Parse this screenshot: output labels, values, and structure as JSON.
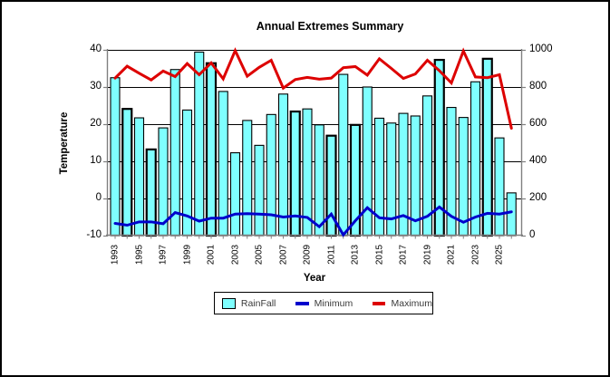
{
  "chart_data": {
    "type": "bar+line combo",
    "title": "Annual Extremes Summary",
    "xlabel": "Year",
    "ylabel_left": "Temperature",
    "grid": true,
    "legend": {
      "position": "bottom",
      "entries": [
        "RainFall",
        "Minimum",
        "Maximum"
      ]
    },
    "x_years": [
      1993,
      1994,
      1995,
      1996,
      1997,
      1998,
      1999,
      2000,
      2001,
      2002,
      2003,
      2004,
      2005,
      2006,
      2007,
      2008,
      2009,
      2010,
      2011,
      2012,
      2013,
      2014,
      2015,
      2016,
      2017,
      2018,
      2019,
      2020,
      2021,
      2022,
      2023,
      2024,
      2025,
      2026
    ],
    "x_tick_labels": [
      "1993",
      "1995",
      "1997",
      "1999",
      "2001",
      "2003",
      "2005",
      "2007",
      "2009",
      "2011",
      "2013",
      "2015",
      "2017",
      "2019",
      "2021",
      "2023",
      "2025"
    ],
    "left_axis": {
      "min": -10,
      "max": 40,
      "ticks": [
        40,
        30,
        20,
        10,
        0,
        -10
      ]
    },
    "right_axis": {
      "min": 0,
      "max": 1000,
      "ticks": [
        1000,
        800,
        600,
        400,
        200,
        0
      ]
    },
    "series": [
      {
        "name": "RainFall",
        "type": "bar",
        "axis": "right",
        "color": "#7FFFFF",
        "bold_border_years": [
          1994,
          1996,
          2001,
          2008,
          2011,
          2013,
          2020,
          2024
        ],
        "values": [
          850,
          682,
          634,
          464,
          580,
          894,
          676,
          988,
          928,
          776,
          446,
          620,
          486,
          652,
          762,
          668,
          682,
          596,
          538,
          868,
          596,
          800,
          632,
          606,
          658,
          644,
          752,
          946,
          690,
          636,
          828,
          952,
          526,
          230
        ]
      },
      {
        "name": "Minimum",
        "type": "line",
        "axis": "left",
        "color": "#0000CC",
        "values": [
          -6.7,
          -7.2,
          -6.3,
          -6.3,
          -6.8,
          -3.8,
          -4.7,
          -6.1,
          -5.3,
          -5.3,
          -4.2,
          -4.1,
          -4.2,
          -4.4,
          -5.0,
          -4.7,
          -5.1,
          -7.6,
          -4.2,
          -9.8,
          -6.0,
          -2.5,
          -5.2,
          -5.5,
          -4.6,
          -6.0,
          -4.8,
          -2.3,
          -4.8,
          -6.4,
          -5.0,
          -4.0,
          -4.2,
          -3.6
        ]
      },
      {
        "name": "Maximum",
        "type": "line",
        "axis": "left",
        "color": "#DD0000",
        "values": [
          32.4,
          35.6,
          33.7,
          31.9,
          34.3,
          32.8,
          36.3,
          33.3,
          36.5,
          32.2,
          39.8,
          32.9,
          35.3,
          37.2,
          29.7,
          32.0,
          32.6,
          32.1,
          32.4,
          35.2,
          35.5,
          33.2,
          37.6,
          35.0,
          32.3,
          33.5,
          37.2,
          34.4,
          31.1,
          39.7,
          32.7,
          32.5,
          33.3,
          18.9
        ]
      }
    ],
    "style": {
      "gridline_color": "#000000",
      "axis_line_color": "#808080",
      "plot_background": "#ffffff"
    }
  }
}
